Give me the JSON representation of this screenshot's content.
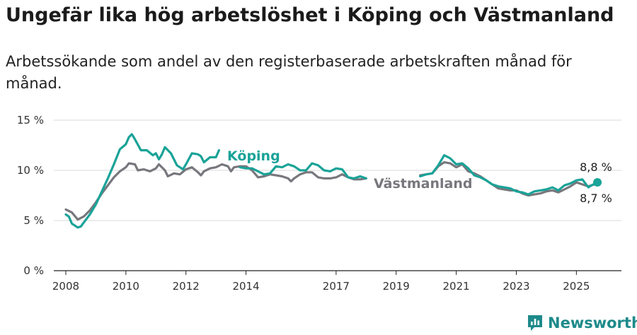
{
  "title": "Ungefär lika hög arbetslöshet i Köping och Västmanland",
  "subtitle": "Arbetssökande som andel av den registerbaserade arbetskraften månad för månad.",
  "brand": "Newsworthy",
  "colors": {
    "koping": "#1aa398",
    "vastmanland": "#77777d",
    "brand": "#1e8a8a"
  },
  "chart_data": {
    "type": "line",
    "y_unit": "%",
    "ylim": [
      0,
      15
    ],
    "xlim": [
      2007.6,
      2026.5
    ],
    "y_ticks": [
      {
        "value": 0,
        "label": "0 %"
      },
      {
        "value": 5,
        "label": "5 %"
      },
      {
        "value": 10,
        "label": "10 %"
      },
      {
        "value": 15,
        "label": "15 %"
      }
    ],
    "x_ticks": [
      {
        "value": 2008,
        "label": "2008"
      },
      {
        "value": 2010,
        "label": "2010"
      },
      {
        "value": 2012,
        "label": "2012"
      },
      {
        "value": 2014,
        "label": "2014"
      },
      {
        "value": 2017,
        "label": "2017"
      },
      {
        "value": 2019,
        "label": "2019"
      },
      {
        "value": 2021,
        "label": "2021"
      },
      {
        "value": 2023,
        "label": "2023"
      },
      {
        "value": 2025,
        "label": "2025"
      }
    ],
    "grid": true,
    "series": [
      {
        "name": "Västmanland",
        "end_label": "8,7 %",
        "points": [
          [
            2008.0,
            6.1
          ],
          [
            2008.2,
            5.8
          ],
          [
            2008.4,
            5.1
          ],
          [
            2008.6,
            5.4
          ],
          [
            2008.8,
            6.0
          ],
          [
            2009.0,
            6.8
          ],
          [
            2009.2,
            7.7
          ],
          [
            2009.4,
            8.5
          ],
          [
            2009.6,
            9.3
          ],
          [
            2009.8,
            9.9
          ],
          [
            2010.0,
            10.3
          ],
          [
            2010.1,
            10.7
          ],
          [
            2010.3,
            10.6
          ],
          [
            2010.4,
            10.0
          ],
          [
            2010.6,
            10.1
          ],
          [
            2010.8,
            9.9
          ],
          [
            2011.0,
            10.2
          ],
          [
            2011.1,
            10.6
          ],
          [
            2011.3,
            10.0
          ],
          [
            2011.4,
            9.4
          ],
          [
            2011.6,
            9.7
          ],
          [
            2011.8,
            9.6
          ],
          [
            2012.0,
            10.1
          ],
          [
            2012.2,
            10.3
          ],
          [
            2012.4,
            9.8
          ],
          [
            2012.5,
            9.5
          ],
          [
            2012.6,
            9.9
          ],
          [
            2012.8,
            10.2
          ],
          [
            2013.0,
            10.3
          ],
          [
            2013.2,
            10.6
          ],
          [
            2013.4,
            10.4
          ],
          [
            2013.5,
            9.9
          ],
          [
            2013.6,
            10.3
          ],
          [
            2013.8,
            10.4
          ],
          [
            2014.0,
            10.4
          ],
          [
            2014.2,
            10.0
          ],
          [
            2014.4,
            9.3
          ],
          [
            2014.6,
            9.4
          ],
          [
            2014.8,
            9.6
          ],
          [
            2015.0,
            9.5
          ],
          [
            2015.2,
            9.4
          ],
          [
            2015.4,
            9.2
          ],
          [
            2015.5,
            8.9
          ],
          [
            2015.6,
            9.2
          ],
          [
            2015.8,
            9.6
          ],
          [
            2016.0,
            9.8
          ],
          [
            2016.2,
            9.8
          ],
          [
            2016.4,
            9.3
          ],
          [
            2016.6,
            9.2
          ],
          [
            2016.8,
            9.2
          ],
          [
            2017.0,
            9.3
          ],
          [
            2017.2,
            9.6
          ],
          [
            2017.4,
            9.3
          ],
          [
            2017.6,
            9.1
          ],
          [
            2017.8,
            9.1
          ],
          [
            2018.0,
            9.2
          ]
        ],
        "points2": [
          [
            2019.8,
            9.5
          ],
          [
            2020.0,
            9.6
          ],
          [
            2020.2,
            9.7
          ],
          [
            2020.4,
            10.4
          ],
          [
            2020.6,
            10.8
          ],
          [
            2020.8,
            10.7
          ],
          [
            2021.0,
            10.3
          ],
          [
            2021.2,
            10.6
          ],
          [
            2021.4,
            9.9
          ],
          [
            2021.6,
            9.7
          ],
          [
            2021.8,
            9.4
          ],
          [
            2022.0,
            9.0
          ],
          [
            2022.2,
            8.6
          ],
          [
            2022.4,
            8.2
          ],
          [
            2022.6,
            8.1
          ],
          [
            2022.8,
            8.0
          ],
          [
            2023.0,
            8.0
          ],
          [
            2023.2,
            7.7
          ],
          [
            2023.4,
            7.5
          ],
          [
            2023.6,
            7.6
          ],
          [
            2023.8,
            7.7
          ],
          [
            2024.0,
            7.9
          ],
          [
            2024.2,
            8.0
          ],
          [
            2024.4,
            7.8
          ],
          [
            2024.6,
            8.1
          ],
          [
            2024.8,
            8.4
          ],
          [
            2025.0,
            8.8
          ],
          [
            2025.2,
            8.6
          ],
          [
            2025.4,
            8.4
          ],
          [
            2025.6,
            8.6
          ],
          [
            2025.7,
            8.7
          ]
        ]
      },
      {
        "name": "Köping",
        "end_label": "8,8 %",
        "points": [
          [
            2008.0,
            5.6
          ],
          [
            2008.1,
            5.4
          ],
          [
            2008.2,
            4.7
          ],
          [
            2008.4,
            4.3
          ],
          [
            2008.5,
            4.4
          ],
          [
            2008.6,
            4.8
          ],
          [
            2008.8,
            5.6
          ],
          [
            2009.0,
            6.6
          ],
          [
            2009.2,
            7.9
          ],
          [
            2009.4,
            9.2
          ],
          [
            2009.6,
            10.6
          ],
          [
            2009.8,
            12.1
          ],
          [
            2010.0,
            12.6
          ],
          [
            2010.1,
            13.3
          ],
          [
            2010.2,
            13.6
          ],
          [
            2010.3,
            13.1
          ],
          [
            2010.5,
            12.0
          ],
          [
            2010.7,
            12.0
          ],
          [
            2010.9,
            11.5
          ],
          [
            2011.0,
            11.7
          ],
          [
            2011.1,
            11.1
          ],
          [
            2011.2,
            11.6
          ],
          [
            2011.3,
            12.3
          ],
          [
            2011.5,
            11.7
          ],
          [
            2011.7,
            10.5
          ],
          [
            2011.9,
            10.1
          ],
          [
            2012.0,
            10.6
          ],
          [
            2012.2,
            11.7
          ],
          [
            2012.4,
            11.6
          ],
          [
            2012.5,
            11.4
          ],
          [
            2012.6,
            10.8
          ],
          [
            2012.8,
            11.3
          ],
          [
            2013.0,
            11.3
          ],
          [
            2013.1,
            12.0
          ]
        ],
        "points2": [
          [
            2013.8,
            10.3
          ],
          [
            2014.0,
            10.2
          ],
          [
            2014.2,
            10.2
          ],
          [
            2014.4,
            9.9
          ],
          [
            2014.6,
            9.6
          ],
          [
            2014.8,
            9.7
          ],
          [
            2015.0,
            10.4
          ],
          [
            2015.2,
            10.3
          ],
          [
            2015.4,
            10.6
          ],
          [
            2015.6,
            10.4
          ],
          [
            2015.8,
            10.0
          ],
          [
            2016.0,
            10.0
          ],
          [
            2016.2,
            10.7
          ],
          [
            2016.4,
            10.5
          ],
          [
            2016.6,
            10.0
          ],
          [
            2016.8,
            9.9
          ],
          [
            2017.0,
            10.2
          ],
          [
            2017.2,
            10.1
          ],
          [
            2017.4,
            9.3
          ],
          [
            2017.6,
            9.2
          ],
          [
            2017.8,
            9.4
          ],
          [
            2018.0,
            9.2
          ]
        ],
        "points3": [
          [
            2019.8,
            9.4
          ],
          [
            2020.0,
            9.6
          ],
          [
            2020.2,
            9.7
          ],
          [
            2020.4,
            10.5
          ],
          [
            2020.6,
            11.5
          ],
          [
            2020.8,
            11.2
          ],
          [
            2021.0,
            10.6
          ],
          [
            2021.2,
            10.7
          ],
          [
            2021.4,
            10.2
          ],
          [
            2021.6,
            9.5
          ],
          [
            2021.8,
            9.3
          ],
          [
            2022.0,
            9.0
          ],
          [
            2022.2,
            8.6
          ],
          [
            2022.4,
            8.4
          ],
          [
            2022.6,
            8.3
          ],
          [
            2022.8,
            8.2
          ],
          [
            2023.0,
            7.9
          ],
          [
            2023.2,
            7.8
          ],
          [
            2023.4,
            7.6
          ],
          [
            2023.6,
            7.9
          ],
          [
            2023.8,
            8.0
          ],
          [
            2024.0,
            8.1
          ],
          [
            2024.2,
            8.3
          ],
          [
            2024.4,
            8.0
          ],
          [
            2024.6,
            8.5
          ],
          [
            2024.8,
            8.7
          ],
          [
            2025.0,
            9.0
          ],
          [
            2025.2,
            9.1
          ],
          [
            2025.4,
            8.3
          ],
          [
            2025.5,
            8.5
          ],
          [
            2025.7,
            8.8
          ]
        ]
      }
    ]
  }
}
